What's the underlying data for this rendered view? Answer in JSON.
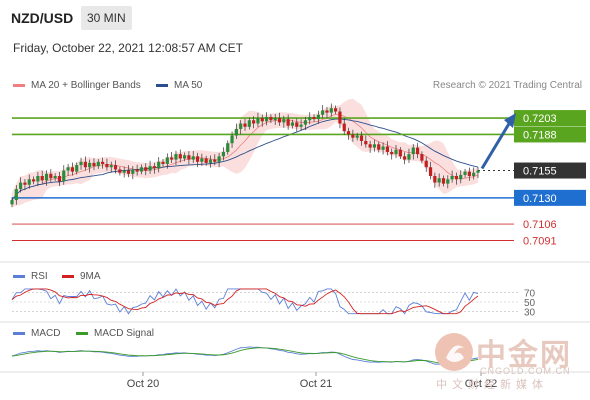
{
  "header": {
    "pair": "NZD/USD",
    "timeframe": "30 MIN"
  },
  "timestamp": "Friday, October 22, 2021 12:08:57 AM CET",
  "credit": "Research © 2021 Trading Central",
  "legend": {
    "bb": {
      "label": "MA 20 + Bollinger Bands",
      "color": "#f08080"
    },
    "ma50": {
      "label": "MA 50",
      "color": "#2c4f8c"
    },
    "rsi": {
      "label": "RSI",
      "color": "#5b7fd6"
    },
    "rsi_ma": {
      "label": "9MA",
      "color": "#d42020"
    },
    "macd": {
      "label": "MACD",
      "color": "#5b7fd6"
    },
    "macd_signal": {
      "label": "MACD Signal",
      "color": "#3a9a2a"
    }
  },
  "watermark": {
    "brand": "中金网",
    "url": "CNGOLD.COM.CN",
    "sub": "中文财经新媒体"
  },
  "chart_data": {
    "type": "candlestick",
    "price_range": [
      0.7075,
      0.7225
    ],
    "x_ticks": [
      "Oct 20",
      "Oct 21",
      "Oct 22"
    ],
    "levels": [
      {
        "value": 0.7203,
        "label": "0.7203",
        "kind": "resistance",
        "color": "#5aa51f"
      },
      {
        "value": 0.7188,
        "label": "0.7188",
        "kind": "resistance",
        "color": "#5aa51f"
      },
      {
        "value": 0.7155,
        "label": "0.7155",
        "kind": "last",
        "color": "#333333"
      },
      {
        "value": 0.713,
        "label": "0.7130",
        "kind": "pivot",
        "color": "#1f6fd0"
      },
      {
        "value": 0.7106,
        "label": "0.7106",
        "kind": "support",
        "color": "#d03030"
      },
      {
        "value": 0.7091,
        "label": "0.7091",
        "kind": "support",
        "color": "#d03030"
      }
    ],
    "close": [
      0.7128,
      0.7138,
      0.7144,
      0.7142,
      0.7147,
      0.7145,
      0.715,
      0.7146,
      0.7152,
      0.7148,
      0.715,
      0.7145,
      0.7155,
      0.7158,
      0.7154,
      0.716,
      0.7163,
      0.7158,
      0.7162,
      0.7159,
      0.7163,
      0.7161,
      0.7158,
      0.716,
      0.7156,
      0.7153,
      0.7155,
      0.7152,
      0.7156,
      0.7154,
      0.7158,
      0.7155,
      0.7159,
      0.7157,
      0.7163,
      0.7161,
      0.7167,
      0.7165,
      0.717,
      0.7166,
      0.7169,
      0.7165,
      0.7168,
      0.7163,
      0.7166,
      0.7162,
      0.7165,
      0.7163,
      0.7168,
      0.7172,
      0.718,
      0.7187,
      0.7193,
      0.7198,
      0.7195,
      0.7201,
      0.7198,
      0.7203,
      0.72,
      0.7204,
      0.7201,
      0.7203,
      0.7199,
      0.7202,
      0.7196,
      0.7199,
      0.7195,
      0.7197,
      0.7201,
      0.7204,
      0.7202,
      0.7206,
      0.721,
      0.7208,
      0.7212,
      0.7209,
      0.7198,
      0.7191,
      0.7188,
      0.7185,
      0.7187,
      0.7182,
      0.7179,
      0.7176,
      0.7179,
      0.7174,
      0.7177,
      0.7172,
      0.717,
      0.7174,
      0.7168,
      0.7165,
      0.717,
      0.7176,
      0.717,
      0.7164,
      0.7158,
      0.715,
      0.7144,
      0.7148,
      0.7143,
      0.7147,
      0.715,
      0.7147,
      0.7151,
      0.7154,
      0.715,
      0.7153,
      0.7155
    ],
    "rsi_levels": [
      70,
      50,
      30
    ],
    "bollinger": "MA 20 with upper/lower bands (pink shaded)",
    "ma": "MA 50 (blue line)"
  }
}
